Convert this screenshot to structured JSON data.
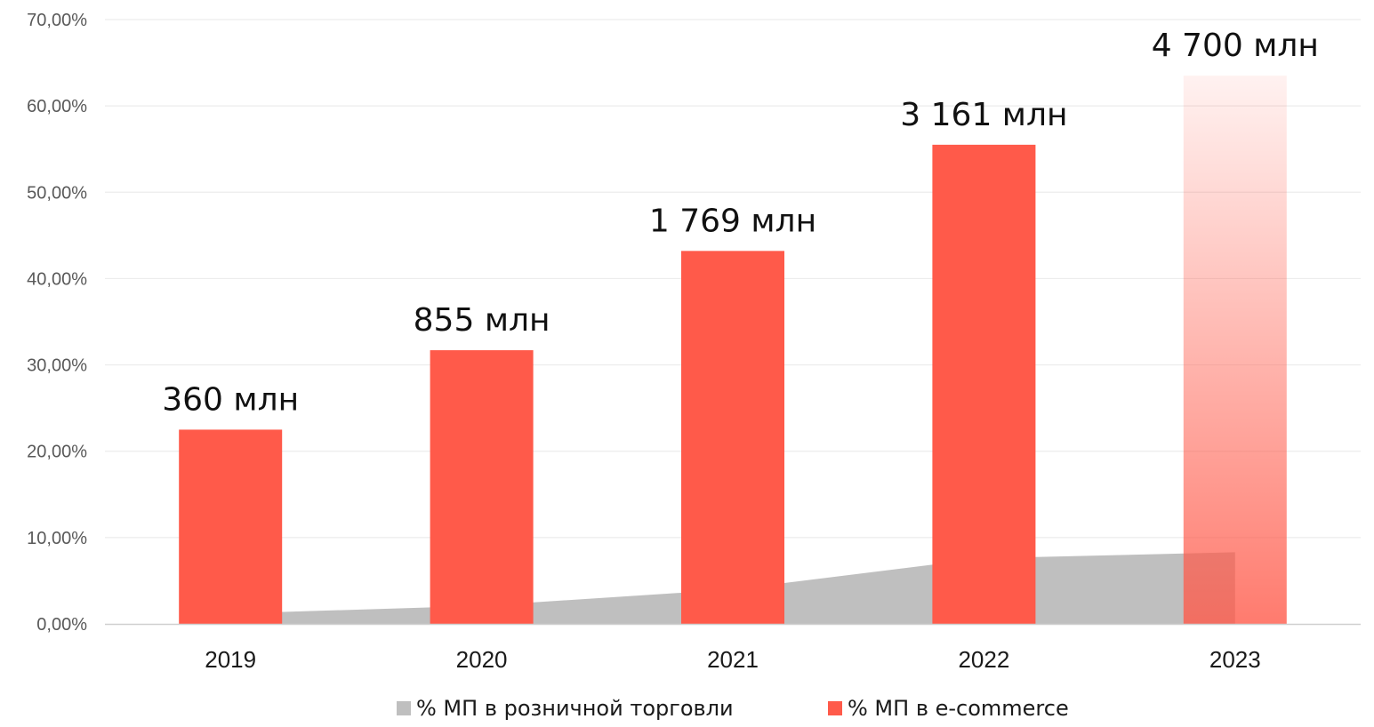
{
  "chart_data": {
    "type": "bar",
    "categories": [
      "2019",
      "2020",
      "2021",
      "2022",
      "2023"
    ],
    "ylim": [
      0,
      70
    ],
    "y_ticks": [
      "0,00%",
      "10,00%",
      "20,00%",
      "30,00%",
      "40,00%",
      "50,00%",
      "60,00%",
      "70,00%"
    ],
    "y_tick_values": [
      0,
      10,
      20,
      30,
      40,
      50,
      60,
      70
    ],
    "grid": true,
    "legend_position": "bottom",
    "series": [
      {
        "name": "% МП в розничной торговли",
        "kind": "area",
        "color": "#bfbfbf",
        "values": [
          1.2,
          2.1,
          4.0,
          7.6,
          8.3
        ]
      },
      {
        "name": "% МП в e-commerce",
        "kind": "bar",
        "color": "#ff5a4a",
        "values": [
          22.5,
          31.7,
          43.2,
          55.5,
          63.5
        ],
        "labels": [
          "360 млн",
          "855 млн",
          "1 769 млн",
          "3 161 млн",
          "4 700 млн"
        ],
        "gradient_fade_last": true
      }
    ]
  }
}
